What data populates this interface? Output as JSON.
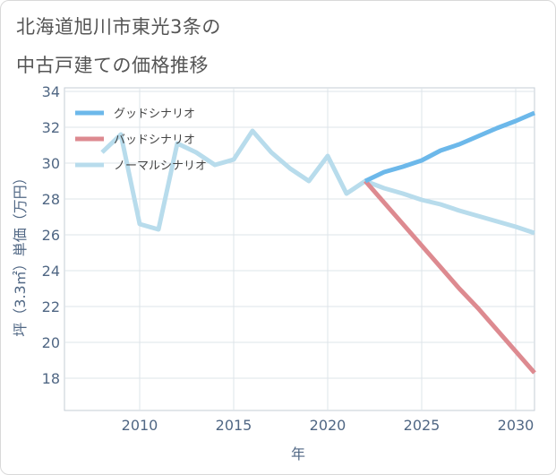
{
  "title_line1": "北海道旭川市東光3条の",
  "title_line2": "中古戸建ての価格推移",
  "chart_data": {
    "type": "line",
    "xlabel": "年",
    "ylabel": "坪（3.3㎡）単価（万円）",
    "xlim": [
      2006,
      2031
    ],
    "ylim": [
      16.2,
      34.2
    ],
    "x_ticks": [
      2010,
      2015,
      2020,
      2025,
      2030
    ],
    "y_ticks": [
      18,
      20,
      22,
      24,
      26,
      28,
      30,
      32,
      34
    ],
    "grid": true,
    "legend_position": "top-left",
    "series": [
      {
        "name": "グッドシナリオ",
        "color": "#6cb8ea",
        "x": [
          2022,
          2023,
          2024,
          2025,
          2026,
          2027,
          2028,
          2029,
          2030,
          2031
        ],
        "y": [
          29.0,
          29.5,
          29.8,
          30.15,
          30.7,
          31.05,
          31.5,
          31.95,
          32.35,
          32.8
        ]
      },
      {
        "name": "バッドシナリオ",
        "color": "#dd8a90",
        "x": [
          2022,
          2023,
          2024,
          2025,
          2026,
          2027,
          2028,
          2029,
          2030,
          2031
        ],
        "y": [
          29.0,
          27.8,
          26.6,
          25.4,
          24.2,
          23.0,
          21.9,
          20.7,
          19.5,
          18.3
        ]
      },
      {
        "name": "ノーマルシナリオ",
        "color": "#b8dcec",
        "x": [
          2008,
          2009,
          2010,
          2011,
          2012,
          2013,
          2014,
          2015,
          2016,
          2017,
          2018,
          2019,
          2020,
          2021,
          2022,
          2023,
          2024,
          2025,
          2026,
          2027,
          2028,
          2029,
          2030,
          2031
        ],
        "y": [
          30.6,
          31.6,
          26.6,
          26.3,
          31.1,
          30.6,
          29.9,
          30.2,
          31.8,
          30.6,
          29.7,
          29.0,
          30.4,
          28.3,
          29.0,
          28.6,
          28.3,
          27.95,
          27.7,
          27.35,
          27.05,
          26.75,
          26.45,
          26.1
        ]
      }
    ]
  }
}
